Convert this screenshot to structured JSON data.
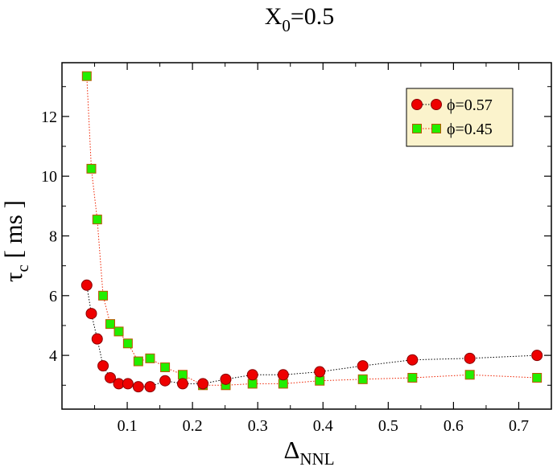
{
  "chart_data": {
    "type": "scatter",
    "title": {
      "main": "X",
      "sub": "0",
      "rest": "=0.5"
    },
    "xlabel": {
      "main": "Δ",
      "sub": "NNL"
    },
    "ylabel": {
      "main": "τ",
      "sub": "c",
      "rest": " [ ms ]"
    },
    "xlim": [
      0.0,
      0.75
    ],
    "ylim": [
      2.2,
      13.8
    ],
    "xticks": [
      0.1,
      0.2,
      0.3,
      0.4,
      0.5,
      0.6,
      0.7
    ],
    "xtick_labels": [
      "0.1",
      "0.2",
      "0.3",
      "0.4",
      "0.5",
      "0.6",
      "0.7"
    ],
    "yticks": [
      4,
      6,
      8,
      10,
      12
    ],
    "ytick_labels": [
      "4",
      "6",
      "8",
      "10",
      "12"
    ],
    "grid": false,
    "legend_position": "top-right",
    "series": [
      {
        "name": "ϕ=0.57",
        "marker": "circle",
        "fill": "#ee0000",
        "stroke": "#8a0000",
        "line_color": "#000000",
        "x": [
          0.038,
          0.045,
          0.054,
          0.063,
          0.074,
          0.087,
          0.101,
          0.117,
          0.135,
          0.158,
          0.185,
          0.216,
          0.251,
          0.292,
          0.339,
          0.395,
          0.461,
          0.537,
          0.625,
          0.728
        ],
        "y": [
          6.35,
          5.4,
          4.55,
          3.65,
          3.25,
          3.05,
          3.05,
          2.95,
          2.95,
          3.15,
          3.05,
          3.05,
          3.2,
          3.35,
          3.35,
          3.45,
          3.65,
          3.85,
          3.9,
          4.0
        ]
      },
      {
        "name": "ϕ=0.45",
        "marker": "square",
        "fill": "#22ee00",
        "stroke": "#bb5500",
        "line_color": "#ee2200",
        "x": [
          0.038,
          0.045,
          0.054,
          0.063,
          0.074,
          0.087,
          0.101,
          0.117,
          0.135,
          0.158,
          0.185,
          0.216,
          0.251,
          0.292,
          0.339,
          0.395,
          0.461,
          0.537,
          0.625,
          0.728
        ],
        "y": [
          13.35,
          10.25,
          8.55,
          6.0,
          5.05,
          4.8,
          4.4,
          3.8,
          3.9,
          3.6,
          3.35,
          3.0,
          3.0,
          3.05,
          3.05,
          3.15,
          3.2,
          3.25,
          3.35,
          3.25
        ]
      }
    ]
  },
  "colors": {
    "axis": "#000000",
    "legend_background": "#fbf3cc"
  }
}
